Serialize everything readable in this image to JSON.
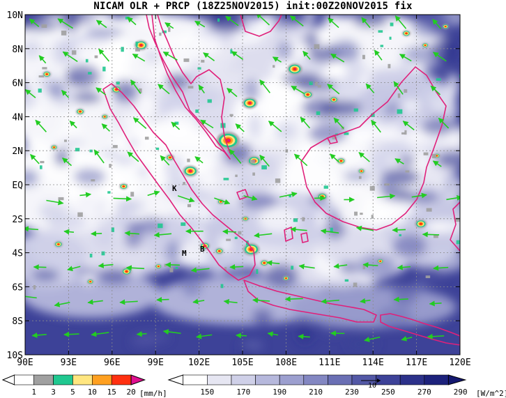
{
  "title": "NICAM OLR + PRCP (18Z25NOV2015) init:00Z20NOV2015 fix",
  "map": {
    "lon_ticks": [
      "90E",
      "93E",
      "96E",
      "99E",
      "102E",
      "105E",
      "108E",
      "111E",
      "114E",
      "117E",
      "120E"
    ],
    "lat_ticks": [
      "10N",
      "8N",
      "6N",
      "4N",
      "2N",
      "EQ",
      "2S",
      "4S",
      "6S",
      "8S",
      "10S"
    ],
    "lon_range": [
      90,
      120
    ],
    "lat_range": [
      -10,
      10
    ],
    "gridlines": true,
    "station_labels": [
      "K",
      "M",
      "B"
    ],
    "colors": {
      "coastline": "#e0207a",
      "wind_vector": "#22cc22",
      "olr_bright": "#ffffff",
      "olr_deep": "#1a1f7a"
    }
  },
  "precip_legend": {
    "unit": "[mm/h]",
    "ticks": [
      "1",
      "3",
      "5",
      "10",
      "15",
      "20"
    ],
    "colors": [
      "#ffffff",
      "#a0a0a0",
      "#20c890",
      "#ffe680",
      "#ffa020",
      "#ff3010",
      "#e01090"
    ]
  },
  "olr_legend": {
    "unit": "[W/m^2]",
    "ticks": [
      "150",
      "170",
      "190",
      "210",
      "230",
      "250",
      "270",
      "290"
    ],
    "colors": [
      "#ffffff",
      "#e6e6f2",
      "#cfd0e8",
      "#b6b8dc",
      "#9c9fcf",
      "#8387c2",
      "#6a6fb4",
      "#5358a6",
      "#3d4298",
      "#2c318a",
      "#1d227c",
      "#141870"
    ]
  },
  "vector_reference": "10"
}
